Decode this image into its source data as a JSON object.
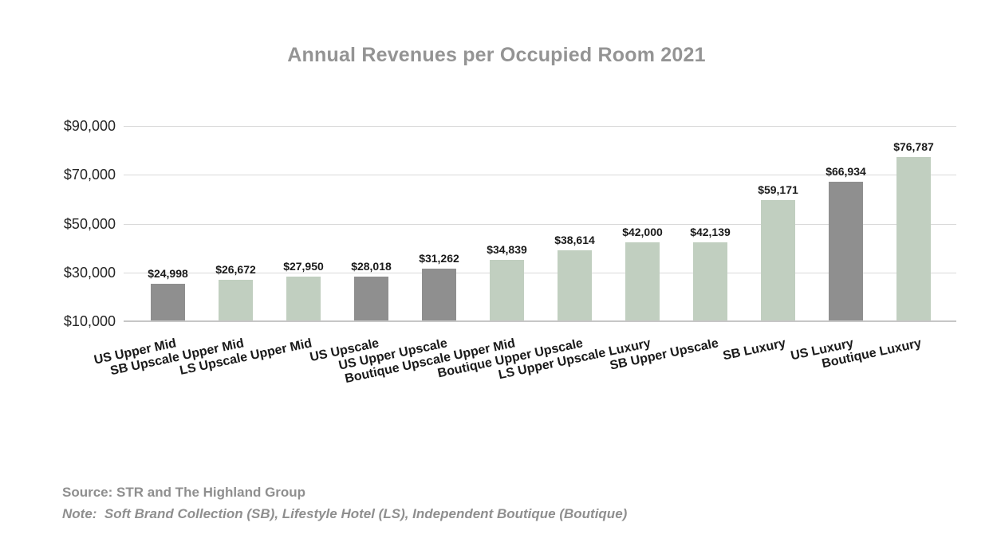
{
  "title": "Annual Revenues per Occupied Room 2021",
  "footer": {
    "source": "Source: STR and The Highland Group",
    "note": "Note:  Soft Brand Collection (SB), Lifestyle Hotel (LS), Independent Boutique (Boutique)"
  },
  "colors": {
    "title_text": "#949494",
    "footer_text": "#8f8f8f",
    "bar_green": "#c1cfc0",
    "bar_gray": "#8f8f8f",
    "gridline": "#d9d9d9",
    "axis_line": "#c6c6c6",
    "axis_text": "#262626",
    "data_label_text": "#1a1a1a"
  },
  "chart_data": {
    "type": "bar",
    "title": "Annual Revenues per Occupied Room 2021",
    "categories": [
      "US Upper Mid",
      "SB Upscale Upper Mid",
      "LS Upscale Upper Mid",
      "US Upscale",
      "US Upper Upscale",
      "Boutique Upscale Upper Mid",
      "Boutique Upper Upscale",
      "LS Upper Upscale Luxury",
      "SB Upper Upscale",
      "SB Luxury",
      "US Luxury",
      "Boutique Luxury"
    ],
    "values": [
      24998,
      26672,
      27950,
      28018,
      31262,
      34839,
      38614,
      42000,
      42139,
      59171,
      66934,
      76787
    ],
    "value_labels": [
      "$24,998",
      "$26,672",
      "$27,950",
      "$28,018",
      "$31,262",
      "$34,839",
      "$38,614",
      "$42,000",
      "$42,139",
      "$59,171",
      "$66,934",
      "$76,787"
    ],
    "bar_color_keys": [
      "gray",
      "green",
      "green",
      "gray",
      "gray",
      "green",
      "green",
      "green",
      "green",
      "green",
      "gray",
      "green"
    ],
    "xlabel": "",
    "ylabel": "",
    "ylim": [
      10000,
      90000
    ],
    "yticks": [
      90000,
      70000,
      50000,
      30000,
      10000
    ],
    "ytick_labels": [
      "$90,000",
      "$70,000",
      "$50,000",
      "$30,000",
      "$10,000"
    ],
    "grid": true,
    "legend": null
  }
}
